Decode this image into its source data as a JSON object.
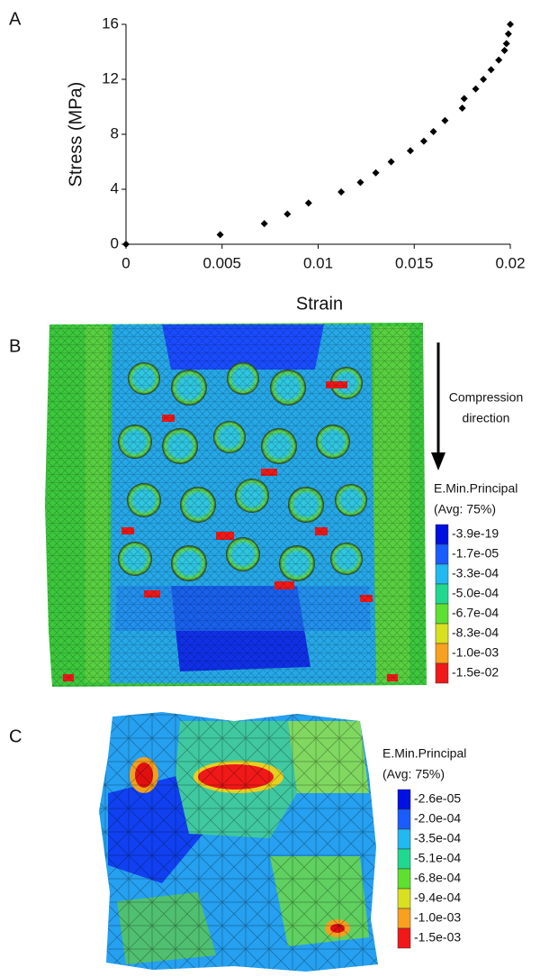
{
  "chart_data": {
    "type": "scatter",
    "panel_label": "A",
    "x_label": "Strain",
    "y_label": "Stress (MPa)",
    "x": [
      0,
      0.0049,
      0.0072,
      0.0084,
      0.0095,
      0.0112,
      0.0122,
      0.013,
      0.0138,
      0.0148,
      0.0155,
      0.016,
      0.0166,
      0.0175,
      0.0176,
      0.0182,
      0.0186,
      0.019,
      0.0194,
      0.0197,
      0.0198,
      0.0199,
      0.02
    ],
    "values": [
      0,
      0.7,
      1.5,
      2.2,
      3.0,
      3.8,
      4.5,
      5.2,
      6.0,
      6.8,
      7.5,
      8.2,
      9.0,
      9.9,
      10.6,
      11.3,
      12.0,
      12.7,
      13.4,
      14.1,
      14.6,
      15.3,
      16.0
    ],
    "color": "#000000",
    "xlim": [
      0,
      0.02
    ],
    "xticks": [
      0,
      0.005,
      0.01,
      0.015,
      0.02
    ],
    "ylim": [
      0,
      16
    ],
    "yticks": [
      0,
      4,
      8,
      12,
      16
    ]
  },
  "panel_b": {
    "label": "B",
    "annotation": [
      "Compression",
      "direction"
    ],
    "legend_title": [
      "E.Min.Principal",
      "(Avg: 75%)"
    ],
    "legend": [
      {
        "label": "-3.9e-19",
        "color": "#0010e0"
      },
      {
        "label": "-1.7e-05",
        "color": "#1a5cff"
      },
      {
        "label": "-3.3e-04",
        "color": "#22b8f0"
      },
      {
        "label": "-5.0e-04",
        "color": "#20d890"
      },
      {
        "label": "-6.7e-04",
        "color": "#5ee030"
      },
      {
        "label": "-8.3e-04",
        "color": "#d8e020"
      },
      {
        "label": "-1.0e-03",
        "color": "#f8a020"
      },
      {
        "label": "-1.5e-02",
        "color": "#f01818"
      }
    ]
  },
  "panel_c": {
    "label": "C",
    "legend_title": [
      "E.Min.Principal",
      "(Avg: 75%)"
    ],
    "legend": [
      {
        "label": "-2.6e-05",
        "color": "#0010e0"
      },
      {
        "label": "-2.0e-04",
        "color": "#1a5cff"
      },
      {
        "label": "-3.5e-04",
        "color": "#22b8f0"
      },
      {
        "label": "-5.1e-04",
        "color": "#20d890"
      },
      {
        "label": "-6.8e-04",
        "color": "#5ee030"
      },
      {
        "label": "-9.4e-04",
        "color": "#d8e020"
      },
      {
        "label": "-1.0e-03",
        "color": "#f8a020"
      },
      {
        "label": "-1.5e-03",
        "color": "#f01818"
      }
    ]
  }
}
